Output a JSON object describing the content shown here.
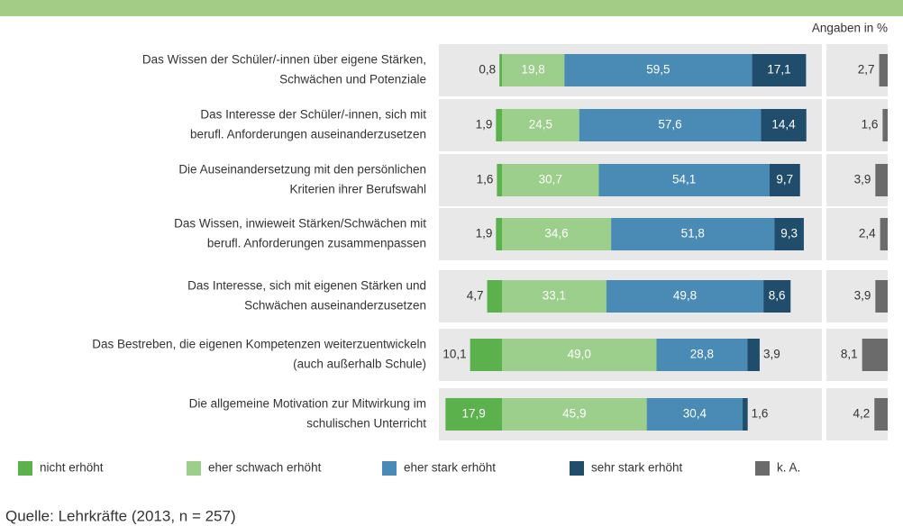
{
  "chart_data": {
    "type": "stacked-bar-horizontal",
    "unit_note": "Angaben in %",
    "source": "Quelle: Lehrkräfte (2013, n = 257)",
    "categories": [
      [
        "Das Wissen der Schüler/-innen über eigene Stärken,",
        "Schwächen und Potenziale"
      ],
      [
        "Das Interesse der Schüler/-innen, sich mit",
        "berufl. Anforderungen auseinanderzusetzen"
      ],
      [
        "Die Auseinandersetzung mit den persönlichen",
        "Kriterien ihrer Berufswahl"
      ],
      [
        "Das Wissen, inwieweit Stärken/Schwächen mit",
        "berufl. Anforderungen zusammenpassen"
      ],
      [
        "Das Interesse, sich mit eigenen Stärken und",
        "Schwächen auseinanderzusetzen"
      ],
      [
        "Das Bestreben, die eigenen Kompetenzen weiterzuentwickeln",
        "(auch außerhalb Schule)"
      ],
      [
        "Die allgemeine Motivation zur Mitwirkung im",
        "schulischen Unterricht"
      ]
    ],
    "series": [
      {
        "name": "nicht erhöht",
        "color": "#5bb14c",
        "values": [
          0.8,
          1.9,
          1.6,
          1.9,
          4.7,
          10.1,
          17.9
        ],
        "value_labels": [
          "0,8",
          "1,9",
          "1,6",
          "1,9",
          "4,7",
          "10,1",
          "17,9"
        ]
      },
      {
        "name": "eher schwach erhöht",
        "color": "#9ccf8b",
        "values": [
          19.8,
          24.5,
          30.7,
          34.6,
          33.1,
          49.0,
          45.9
        ],
        "value_labels": [
          "19,8",
          "24,5",
          "30,7",
          "34,6",
          "33,1",
          "49,0",
          "45,9"
        ]
      },
      {
        "name": "eher stark erhöht",
        "color": "#4a8bb6",
        "values": [
          59.5,
          57.6,
          54.1,
          51.8,
          49.8,
          28.8,
          30.4
        ],
        "value_labels": [
          "59,5",
          "57,6",
          "54,1",
          "51,8",
          "49,8",
          "28,8",
          "30,4"
        ]
      },
      {
        "name": "sehr stark erhöht",
        "color": "#1f4d6b",
        "values": [
          17.1,
          14.4,
          9.7,
          9.3,
          8.6,
          3.9,
          1.6
        ],
        "value_labels": [
          "17,1",
          "14,4",
          "9,7",
          "9,3",
          "8,6",
          "3,9",
          "1,6"
        ]
      },
      {
        "name": "k. A.",
        "color": "#6b6b6b",
        "values": [
          2.7,
          1.6,
          3.9,
          2.4,
          3.9,
          8.1,
          4.2
        ],
        "value_labels": [
          "2,7",
          "1,6",
          "3,9",
          "2,4",
          "3,9",
          "8,1",
          "4,2"
        ]
      }
    ]
  }
}
